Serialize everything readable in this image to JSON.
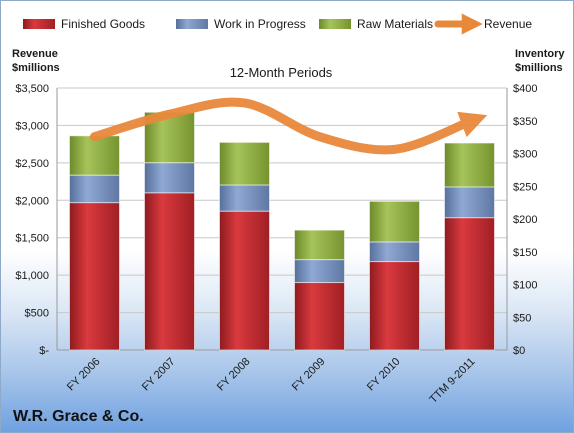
{
  "chart_data": {
    "type": "bar",
    "stacked": true,
    "title": "12-Month Periods",
    "company": "W.R. Grace & Co.",
    "categories": [
      "FY 2006",
      "FY 2007",
      "FY 2008",
      "FY 2009",
      "FY 2010",
      "TTM 9-2011"
    ],
    "ylabel_left": [
      "Revenue",
      "$millions"
    ],
    "ylabel_right": [
      "Inventory",
      "$millions"
    ],
    "ylim_left": [
      0,
      3500
    ],
    "ylim_right": [
      0,
      400
    ],
    "yticks_left": [
      "$-",
      "$500",
      "$1,000",
      "$1,500",
      "$2,000",
      "$2,500",
      "$3,000",
      "$3,500"
    ],
    "yticks_right": [
      "$0",
      "$50",
      "$100",
      "$150",
      "$200",
      "$250",
      "$300",
      "$350",
      "$400"
    ],
    "grid": true,
    "legend_position": "top",
    "series": [
      {
        "name": "Finished Goods",
        "axis": "right",
        "color": "#c0282d",
        "values": [
          225,
          240,
          212,
          103,
          135,
          202
        ]
      },
      {
        "name": "Work in Progress",
        "axis": "right",
        "color": "#6f8fc4",
        "values": [
          42,
          46,
          40,
          35,
          30,
          47
        ]
      },
      {
        "name": "Raw Materials",
        "axis": "right",
        "color": "#8fb040",
        "values": [
          60,
          77,
          65,
          45,
          62,
          67
        ]
      },
      {
        "name": "Revenue",
        "axis": "left",
        "type": "line",
        "color": "#e8893a",
        "values": [
          2850,
          3150,
          3300,
          2850,
          2680,
          3050
        ]
      }
    ]
  }
}
